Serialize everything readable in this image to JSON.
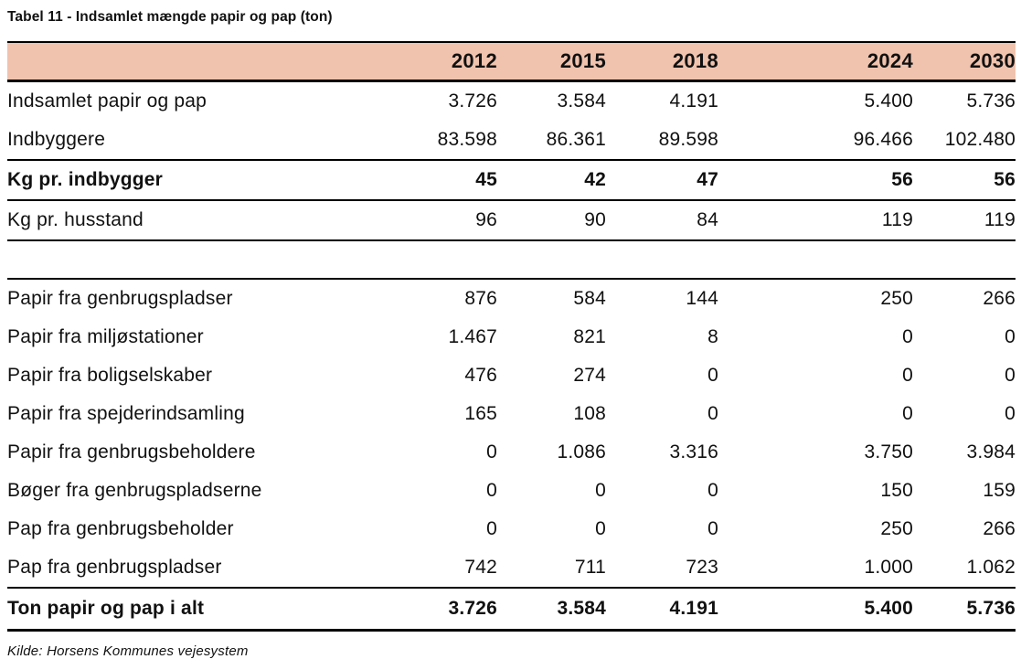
{
  "title": "Tabel 11 - Indsamlet mængde papir og pap (ton)",
  "source": "Kilde: Horsens Kommunes vejesystem",
  "colors": {
    "header_bg": "#f0c3ae",
    "text": "#111111",
    "border": "#000000"
  },
  "table": {
    "year_headers": [
      "2012",
      "2015",
      "2018",
      "2024",
      "2030"
    ],
    "rows": [
      {
        "label": "Indsamlet papir og pap",
        "values": [
          "3.726",
          "3.584",
          "4.191",
          "5.400",
          "5.736"
        ],
        "style": "plain",
        "borders": []
      },
      {
        "label": "Indbyggere",
        "values": [
          "83.598",
          "86.361",
          "89.598",
          "96.466",
          "102.480"
        ],
        "style": "plain",
        "borders": [
          "bottom"
        ]
      },
      {
        "label": "Kg pr. indbygger",
        "values": [
          "45",
          "42",
          "47",
          "56",
          "56"
        ],
        "style": "bold",
        "borders": [
          "bottom"
        ]
      },
      {
        "label": "Kg pr. husstand",
        "values": [
          "96",
          "90",
          "84",
          "119",
          "119"
        ],
        "style": "plain",
        "borders": [
          "bottom"
        ]
      },
      {
        "label": "",
        "values": [
          "",
          "",
          "",
          "",
          ""
        ],
        "style": "spacer",
        "borders": []
      },
      {
        "label": "Papir fra genbrugspladser",
        "values": [
          "876",
          "584",
          "144",
          "250",
          "266"
        ],
        "style": "plain",
        "borders": [
          "top"
        ]
      },
      {
        "label": "Papir fra miljøstationer",
        "values": [
          "1.467",
          "821",
          "8",
          "0",
          "0"
        ],
        "style": "plain",
        "borders": []
      },
      {
        "label": "Papir fra boligselskaber",
        "values": [
          "476",
          "274",
          "0",
          "0",
          "0"
        ],
        "style": "plain",
        "borders": []
      },
      {
        "label": "Papir fra spejderindsamling",
        "values": [
          "165",
          "108",
          "0",
          "0",
          "0"
        ],
        "style": "plain",
        "borders": []
      },
      {
        "label": "Papir fra genbrugsbeholdere",
        "values": [
          "0",
          "1.086",
          "3.316",
          "3.750",
          "3.984"
        ],
        "style": "plain",
        "borders": []
      },
      {
        "label": "Bøger fra genbrugspladserne",
        "values": [
          "0",
          "0",
          "0",
          "150",
          "159"
        ],
        "style": "plain",
        "borders": []
      },
      {
        "label": "Pap fra genbrugsbeholder",
        "values": [
          "0",
          "0",
          "0",
          "250",
          "266"
        ],
        "style": "plain",
        "borders": []
      },
      {
        "label": "Pap fra genbrugspladser",
        "values": [
          "742",
          "711",
          "723",
          "1.000",
          "1.062"
        ],
        "style": "plain",
        "borders": [
          "bottom"
        ]
      },
      {
        "label": "Ton papir og pap i alt",
        "values": [
          "3.726",
          "3.584",
          "4.191",
          "5.400",
          "5.736"
        ],
        "style": "bold-total",
        "borders": [
          "bottom-thick"
        ]
      }
    ]
  }
}
